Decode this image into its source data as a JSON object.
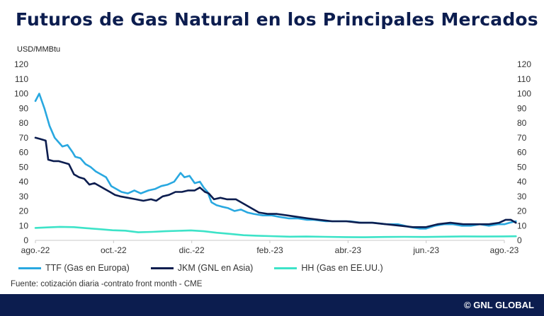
{
  "header": {
    "title": "Futuros de Gas Natural en los Principales Mercados"
  },
  "footer": {
    "source": "Fuente: cotización diaria -contrato front month - CME",
    "brand": "© GNL GLOBAL"
  },
  "chart_data": {
    "type": "line",
    "title": "Futuros de Gas Natural en los Principales Mercados",
    "ylabel": "USD/MMBtu",
    "ylim": [
      0,
      120
    ],
    "yticks": [
      0,
      10,
      20,
      30,
      40,
      50,
      60,
      70,
      80,
      90,
      100,
      110,
      120
    ],
    "secondary_yticks": [
      0,
      10,
      20,
      30,
      40,
      50,
      60,
      70,
      80,
      90,
      100,
      110,
      120
    ],
    "x_ticks": [
      "ago.-22",
      "oct.-22",
      "dic.-22",
      "feb.-23",
      "abr.-23",
      "jun.-23",
      "ago.-23"
    ],
    "grid": false,
    "legend_position": "bottom",
    "series": [
      {
        "name": "TTF (Gas en Europa)",
        "color": "#29a8e0",
        "points": [
          [
            "2022-08-01",
            95
          ],
          [
            "2022-08-04",
            100
          ],
          [
            "2022-08-08",
            90
          ],
          [
            "2022-08-12",
            78
          ],
          [
            "2022-08-16",
            70
          ],
          [
            "2022-08-19",
            67
          ],
          [
            "2022-08-22",
            64
          ],
          [
            "2022-08-26",
            65
          ],
          [
            "2022-08-30",
            60
          ],
          [
            "2022-09-01",
            57
          ],
          [
            "2022-09-05",
            56
          ],
          [
            "2022-09-09",
            52
          ],
          [
            "2022-09-13",
            50
          ],
          [
            "2022-09-17",
            47
          ],
          [
            "2022-09-21",
            45
          ],
          [
            "2022-09-25",
            43
          ],
          [
            "2022-09-29",
            37
          ],
          [
            "2022-10-03",
            35
          ],
          [
            "2022-10-07",
            33
          ],
          [
            "2022-10-12",
            32
          ],
          [
            "2022-10-17",
            34
          ],
          [
            "2022-10-22",
            32
          ],
          [
            "2022-10-28",
            34
          ],
          [
            "2022-11-02",
            35
          ],
          [
            "2022-11-07",
            37
          ],
          [
            "2022-11-12",
            38
          ],
          [
            "2022-11-17",
            40
          ],
          [
            "2022-11-22",
            46
          ],
          [
            "2022-11-25",
            43
          ],
          [
            "2022-11-29",
            44
          ],
          [
            "2022-12-03",
            39
          ],
          [
            "2022-12-07",
            40
          ],
          [
            "2022-12-10",
            36
          ],
          [
            "2022-12-13",
            33
          ],
          [
            "2022-12-16",
            26
          ],
          [
            "2022-12-20",
            24
          ],
          [
            "2022-12-24",
            23
          ],
          [
            "2022-12-29",
            22
          ],
          [
            "2023-01-03",
            20
          ],
          [
            "2023-01-08",
            21
          ],
          [
            "2023-01-13",
            19
          ],
          [
            "2023-01-18",
            18
          ],
          [
            "2023-01-25",
            17
          ],
          [
            "2023-02-01",
            17
          ],
          [
            "2023-02-07",
            16
          ],
          [
            "2023-02-14",
            15
          ],
          [
            "2023-02-21",
            15
          ],
          [
            "2023-02-28",
            14
          ],
          [
            "2023-03-06",
            14
          ],
          [
            "2023-03-15",
            13
          ],
          [
            "2023-03-25",
            13
          ],
          [
            "2023-04-03",
            13
          ],
          [
            "2023-04-12",
            12
          ],
          [
            "2023-04-21",
            12
          ],
          [
            "2023-05-01",
            11
          ],
          [
            "2023-05-10",
            11
          ],
          [
            "2023-05-20",
            9
          ],
          [
            "2023-05-27",
            8
          ],
          [
            "2023-06-01",
            8
          ],
          [
            "2023-06-08",
            10
          ],
          [
            "2023-06-15",
            11
          ],
          [
            "2023-06-22",
            11
          ],
          [
            "2023-06-29",
            10
          ],
          [
            "2023-07-06",
            10
          ],
          [
            "2023-07-13",
            11
          ],
          [
            "2023-07-20",
            10
          ],
          [
            "2023-07-27",
            11
          ],
          [
            "2023-08-01",
            11
          ],
          [
            "2023-08-05",
            12
          ],
          [
            "2023-08-10",
            13
          ]
        ]
      },
      {
        "name": "JKM (GNL en Asia)",
        "color": "#0c1d4f",
        "points": [
          [
            "2022-08-01",
            70
          ],
          [
            "2022-08-05",
            69
          ],
          [
            "2022-08-09",
            68
          ],
          [
            "2022-08-11",
            55
          ],
          [
            "2022-08-15",
            54
          ],
          [
            "2022-08-19",
            54
          ],
          [
            "2022-08-23",
            53
          ],
          [
            "2022-08-27",
            52
          ],
          [
            "2022-08-31",
            45
          ],
          [
            "2022-09-04",
            43
          ],
          [
            "2022-09-08",
            42
          ],
          [
            "2022-09-12",
            38
          ],
          [
            "2022-09-16",
            39
          ],
          [
            "2022-09-20",
            37
          ],
          [
            "2022-09-24",
            35
          ],
          [
            "2022-09-28",
            33
          ],
          [
            "2022-10-02",
            31
          ],
          [
            "2022-10-06",
            30
          ],
          [
            "2022-10-12",
            29
          ],
          [
            "2022-10-18",
            28
          ],
          [
            "2022-10-24",
            27
          ],
          [
            "2022-10-30",
            28
          ],
          [
            "2022-11-03",
            27
          ],
          [
            "2022-11-08",
            30
          ],
          [
            "2022-11-13",
            31
          ],
          [
            "2022-11-18",
            33
          ],
          [
            "2022-11-23",
            33
          ],
          [
            "2022-11-28",
            34
          ],
          [
            "2022-12-03",
            34
          ],
          [
            "2022-12-07",
            36
          ],
          [
            "2022-12-11",
            33
          ],
          [
            "2022-12-14",
            32
          ],
          [
            "2022-12-18",
            28
          ],
          [
            "2022-12-23",
            29
          ],
          [
            "2022-12-28",
            28
          ],
          [
            "2023-01-04",
            28
          ],
          [
            "2023-01-10",
            25
          ],
          [
            "2023-01-16",
            22
          ],
          [
            "2023-01-22",
            19
          ],
          [
            "2023-01-29",
            18
          ],
          [
            "2023-02-05",
            18
          ],
          [
            "2023-02-13",
            17
          ],
          [
            "2023-02-21",
            16
          ],
          [
            "2023-03-01",
            15
          ],
          [
            "2023-03-10",
            14
          ],
          [
            "2023-03-20",
            13
          ],
          [
            "2023-03-31",
            13
          ],
          [
            "2023-04-10",
            12
          ],
          [
            "2023-04-20",
            12
          ],
          [
            "2023-05-01",
            11
          ],
          [
            "2023-05-12",
            10
          ],
          [
            "2023-05-22",
            9
          ],
          [
            "2023-06-01",
            9
          ],
          [
            "2023-06-10",
            11
          ],
          [
            "2023-06-20",
            12
          ],
          [
            "2023-06-30",
            11
          ],
          [
            "2023-07-10",
            11
          ],
          [
            "2023-07-20",
            11
          ],
          [
            "2023-07-28",
            12
          ],
          [
            "2023-08-02",
            14
          ],
          [
            "2023-08-06",
            14
          ],
          [
            "2023-08-10",
            12
          ]
        ]
      },
      {
        "name": "HH (Gas en EE.UU.)",
        "color": "#3de3c8",
        "points": [
          [
            "2022-08-01",
            8.5
          ],
          [
            "2022-08-10",
            8.8
          ],
          [
            "2022-08-20",
            9.2
          ],
          [
            "2022-08-31",
            9.0
          ],
          [
            "2022-09-10",
            8.3
          ],
          [
            "2022-09-20",
            7.6
          ],
          [
            "2022-09-30",
            6.9
          ],
          [
            "2022-10-10",
            6.6
          ],
          [
            "2022-10-20",
            5.5
          ],
          [
            "2022-10-31",
            5.8
          ],
          [
            "2022-11-10",
            6.2
          ],
          [
            "2022-11-20",
            6.5
          ],
          [
            "2022-11-30",
            6.8
          ],
          [
            "2022-12-10",
            6.2
          ],
          [
            "2022-12-20",
            5.2
          ],
          [
            "2022-12-31",
            4.4
          ],
          [
            "2023-01-10",
            3.5
          ],
          [
            "2023-01-20",
            3.2
          ],
          [
            "2023-01-31",
            2.9
          ],
          [
            "2023-02-15",
            2.5
          ],
          [
            "2023-02-28",
            2.6
          ],
          [
            "2023-03-15",
            2.4
          ],
          [
            "2023-03-31",
            2.2
          ],
          [
            "2023-04-15",
            2.1
          ],
          [
            "2023-04-30",
            2.3
          ],
          [
            "2023-05-15",
            2.4
          ],
          [
            "2023-05-31",
            2.3
          ],
          [
            "2023-06-15",
            2.5
          ],
          [
            "2023-06-30",
            2.7
          ],
          [
            "2023-07-15",
            2.6
          ],
          [
            "2023-07-31",
            2.7
          ],
          [
            "2023-08-10",
            2.8
          ]
        ]
      }
    ]
  }
}
